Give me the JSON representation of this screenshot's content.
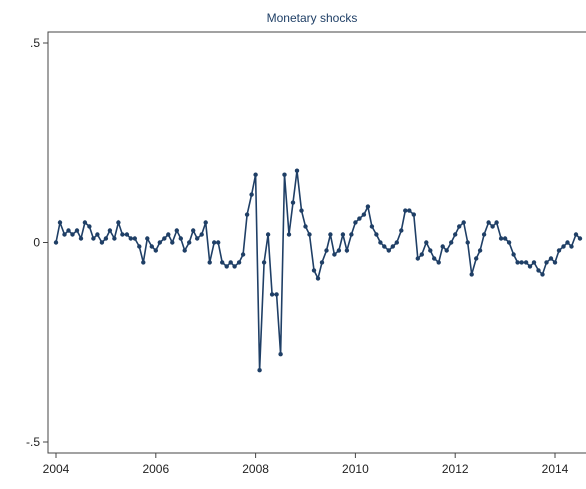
{
  "chart_data": {
    "type": "line",
    "title": "Monetary shocks",
    "xlabel": "",
    "ylabel": "",
    "xlim": [
      2004.0,
      2014.6
    ],
    "ylim": [
      -0.5,
      0.5
    ],
    "x_ticks": [
      2004,
      2006,
      2008,
      2010,
      2012,
      2014
    ],
    "y_ticks": [
      0.5,
      0,
      -0.5
    ],
    "y_tick_labels": [
      ".5",
      "0",
      "-.5"
    ],
    "grid": false,
    "line_color": "#1f3f66",
    "marker_color": "#1f3f66",
    "series": [
      {
        "x": [
          2004.0,
          2004.08,
          2004.17,
          2004.25,
          2004.33,
          2004.42,
          2004.5,
          2004.58,
          2004.67,
          2004.75,
          2004.83,
          2004.92,
          2005.0,
          2005.08,
          2005.17,
          2005.25,
          2005.33,
          2005.42,
          2005.5,
          2005.58,
          2005.67,
          2005.75,
          2005.83,
          2005.92,
          2006.0,
          2006.08,
          2006.17,
          2006.25,
          2006.33,
          2006.42,
          2006.5,
          2006.58,
          2006.67,
          2006.75,
          2006.83,
          2006.92,
          2007.0,
          2007.08,
          2007.17,
          2007.25,
          2007.33,
          2007.42,
          2007.5,
          2007.58,
          2007.67,
          2007.75,
          2007.83,
          2007.92,
          2008.0,
          2008.08,
          2008.17,
          2008.25,
          2008.33,
          2008.42,
          2008.5,
          2008.58,
          2008.67,
          2008.75,
          2008.83,
          2008.92,
          2009.0,
          2009.08,
          2009.17,
          2009.25,
          2009.33,
          2009.42,
          2009.5,
          2009.58,
          2009.67,
          2009.75,
          2009.83,
          2009.92,
          2010.0,
          2010.08,
          2010.17,
          2010.25,
          2010.33,
          2010.42,
          2010.5,
          2010.58,
          2010.67,
          2010.75,
          2010.83,
          2010.92,
          2011.0,
          2011.08,
          2011.17,
          2011.25,
          2011.33,
          2011.42,
          2011.5,
          2011.58,
          2011.67,
          2011.75,
          2011.83,
          2011.92,
          2012.0,
          2012.08,
          2012.17,
          2012.25,
          2012.33,
          2012.42,
          2012.5,
          2012.58,
          2012.67,
          2012.75,
          2012.83,
          2012.92,
          2013.0,
          2013.08,
          2013.17,
          2013.25,
          2013.33,
          2013.42,
          2013.5,
          2013.58,
          2013.67,
          2013.75,
          2013.83,
          2013.92,
          2014.0,
          2014.08,
          2014.17,
          2014.25,
          2014.33,
          2014.42,
          2014.5
        ],
        "y": [
          0.0,
          0.05,
          0.02,
          0.03,
          0.02,
          0.03,
          0.01,
          0.05,
          0.04,
          0.01,
          0.02,
          0.0,
          0.01,
          0.03,
          0.01,
          0.05,
          0.02,
          0.02,
          0.01,
          0.01,
          -0.01,
          -0.05,
          0.01,
          -0.01,
          -0.02,
          0.0,
          0.01,
          0.02,
          0.0,
          0.03,
          0.01,
          -0.02,
          0.0,
          0.03,
          0.01,
          0.02,
          0.05,
          -0.05,
          0.0,
          0.0,
          -0.05,
          -0.06,
          -0.05,
          -0.06,
          -0.05,
          -0.03,
          0.07,
          0.12,
          0.17,
          -0.32,
          -0.05,
          0.02,
          -0.13,
          -0.13,
          -0.28,
          0.17,
          0.02,
          0.1,
          0.18,
          0.08,
          0.04,
          0.02,
          -0.07,
          -0.09,
          -0.05,
          -0.02,
          0.02,
          -0.03,
          -0.02,
          0.02,
          -0.02,
          0.02,
          0.05,
          0.06,
          0.07,
          0.09,
          0.04,
          0.02,
          0.0,
          -0.01,
          -0.02,
          -0.01,
          0.0,
          0.03,
          0.08,
          0.08,
          0.07,
          -0.04,
          -0.03,
          0.0,
          -0.02,
          -0.04,
          -0.05,
          -0.01,
          -0.02,
          0.0,
          0.02,
          0.04,
          0.05,
          0.0,
          -0.08,
          -0.04,
          -0.02,
          0.02,
          0.05,
          0.04,
          0.05,
          0.01,
          0.01,
          0.0,
          -0.03,
          -0.05,
          -0.05,
          -0.05,
          -0.06,
          -0.05,
          -0.07,
          -0.08,
          -0.05,
          -0.04,
          -0.05,
          -0.02,
          -0.01,
          0.0,
          -0.01,
          0.02,
          0.01
        ]
      }
    ]
  }
}
